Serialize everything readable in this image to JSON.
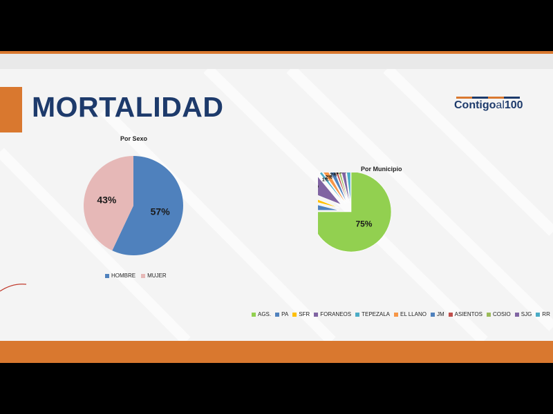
{
  "slide": {
    "title": "MORTALIDAD",
    "logo_text": "Contigo al 100"
  },
  "chart_data": [
    {
      "type": "pie",
      "title": "Por Sexo",
      "categories": [
        "HOMBRE",
        "MUJER"
      ],
      "values": [
        57,
        43
      ],
      "labels": [
        "57%",
        "43%"
      ],
      "colors": [
        "#4f81bd",
        "#e6b8b7"
      ],
      "legend": "bottom"
    },
    {
      "type": "pie",
      "title": "Por Municipio",
      "categories": [
        "AGS.",
        "PA",
        "SFR",
        "FORANEOS",
        "TEPEZALA",
        "EL LLANO",
        "JM",
        "ASIENTOS",
        "COSIO",
        "SJG",
        "RR"
      ],
      "values": [
        75,
        4,
        2,
        8,
        1,
        2,
        2,
        1,
        1,
        2,
        2
      ],
      "labels": [
        "75%",
        "4%",
        "2%",
        "8%",
        "1%",
        "2%",
        "2%",
        "1%",
        "1%",
        "2%",
        "2%"
      ],
      "colors": [
        "#92d050",
        "#4f81bd",
        "#ffc000",
        "#8064a2",
        "#4bacc6",
        "#f79646",
        "#4f81bd",
        "#c0504d",
        "#9bbb59",
        "#8064a2",
        "#4bacc6"
      ],
      "legend": "bottom"
    }
  ]
}
